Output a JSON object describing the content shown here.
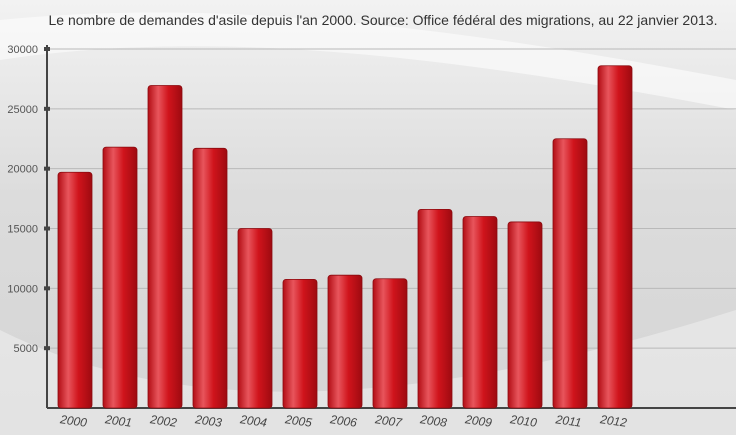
{
  "chart_data": {
    "type": "bar",
    "title": "Le nombre de demandes d'asile depuis l'an 2000. Source: Office fédéral des migrations, au 22 janvier 2013.",
    "xlabel": "",
    "ylabel": "",
    "ylim": [
      0,
      30000
    ],
    "yticks": [
      5000,
      10000,
      15000,
      20000,
      25000,
      30000
    ],
    "grid": true,
    "categories": [
      "2000",
      "2001",
      "2002",
      "2003",
      "2004",
      "2005",
      "2006",
      "2007",
      "2008",
      "2009",
      "2010",
      "2011",
      "2012"
    ],
    "values": [
      19700,
      21800,
      26950,
      21700,
      15000,
      10750,
      11100,
      10800,
      16600,
      16000,
      15550,
      22500,
      28600
    ],
    "bar_color": "#d0141c"
  }
}
